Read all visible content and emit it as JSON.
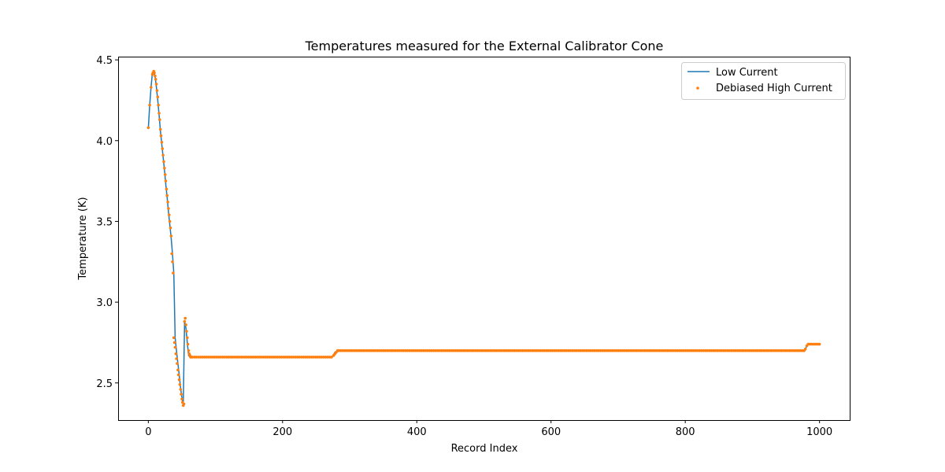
{
  "chart_data": {
    "type": "line",
    "title": "Temperatures measured for the External Calibrator Cone",
    "xlabel": "Record Index",
    "ylabel": "Temperature (K)",
    "xlim": [
      -45,
      1045
    ],
    "ylim": [
      2.27,
      4.52
    ],
    "xticks": [
      0,
      200,
      400,
      600,
      800,
      1000
    ],
    "xtick_labels": [
      "0",
      "200",
      "400",
      "600",
      "800",
      "1000"
    ],
    "yticks": [
      2.5,
      3.0,
      3.5,
      4.0,
      4.5
    ],
    "ytick_labels": [
      "2.5",
      "3.0",
      "3.5",
      "4.0",
      "4.5"
    ],
    "grid": false,
    "legend_position": "top-right",
    "colors": {
      "low_current": "#1f77b4",
      "high_current": "#ff7f0e"
    },
    "series": [
      {
        "name": "Low Current",
        "style": "line",
        "x": [
          0,
          2,
          4,
          6,
          8,
          10,
          12,
          14,
          16,
          18,
          20,
          22,
          24,
          26,
          28,
          30,
          32,
          34,
          36,
          38,
          40,
          42,
          44,
          46,
          48,
          50,
          52,
          54,
          56,
          58,
          60,
          62,
          70,
          100,
          150,
          200,
          250,
          274,
          278,
          282,
          286,
          300,
          400,
          500,
          600,
          700,
          800,
          900,
          978,
          980,
          983,
          990,
          1000
        ],
        "y": [
          4.08,
          4.22,
          4.33,
          4.42,
          4.43,
          4.4,
          4.33,
          4.25,
          4.16,
          4.06,
          3.98,
          3.9,
          3.82,
          3.73,
          3.65,
          3.56,
          3.48,
          3.4,
          3.3,
          3.18,
          2.78,
          2.7,
          2.62,
          2.55,
          2.47,
          2.41,
          2.36,
          2.88,
          2.84,
          2.75,
          2.67,
          2.66,
          2.66,
          2.66,
          2.66,
          2.66,
          2.66,
          2.66,
          2.69,
          2.7,
          2.7,
          2.7,
          2.7,
          2.7,
          2.7,
          2.7,
          2.7,
          2.7,
          2.7,
          2.72,
          2.74,
          2.74,
          2.74
        ]
      },
      {
        "name": "Debiased High Current",
        "style": "scatter",
        "x": [
          0,
          2,
          4,
          6,
          7,
          8,
          9,
          10,
          11,
          12,
          13,
          14,
          15,
          16,
          17,
          18,
          19,
          20,
          21,
          22,
          23,
          24,
          25,
          26,
          27,
          28,
          29,
          30,
          31,
          32,
          33,
          34,
          35,
          36,
          37,
          38,
          39,
          40,
          41,
          42,
          43,
          44,
          45,
          46,
          47,
          48,
          49,
          50,
          51,
          52,
          53,
          54,
          55,
          56,
          57,
          58,
          59,
          60,
          61,
          62,
          63,
          64
        ],
        "y": [
          4.08,
          4.22,
          4.33,
          4.41,
          4.42,
          4.43,
          4.42,
          4.4,
          4.38,
          4.35,
          4.31,
          4.27,
          4.22,
          4.17,
          4.13,
          4.07,
          4.03,
          3.99,
          3.95,
          3.91,
          3.87,
          3.83,
          3.79,
          3.75,
          3.7,
          3.66,
          3.62,
          3.58,
          3.54,
          3.5,
          3.46,
          3.41,
          3.3,
          3.25,
          3.18,
          2.78,
          2.75,
          2.72,
          2.68,
          2.65,
          2.62,
          2.58,
          2.55,
          2.52,
          2.49,
          2.46,
          2.43,
          2.4,
          2.38,
          2.36,
          2.37,
          2.88,
          2.9,
          2.86,
          2.82,
          2.78,
          2.74,
          2.7,
          2.68,
          2.67,
          2.66,
          2.66
        ],
        "segments": [
          {
            "x_start": 66,
            "x_end": 274,
            "step": 3,
            "y": 2.66
          },
          {
            "x_start": 287,
            "x_end": 978,
            "step": 3,
            "y": 2.7
          },
          {
            "x_start": 984,
            "x_end": 1000,
            "step": 2,
            "y": 2.74
          }
        ],
        "transition_x": [
          276,
          278,
          280,
          282,
          284,
          979,
          981,
          983
        ],
        "transition_y": [
          2.67,
          2.68,
          2.69,
          2.7,
          2.7,
          2.71,
          2.73,
          2.74
        ]
      }
    ]
  }
}
